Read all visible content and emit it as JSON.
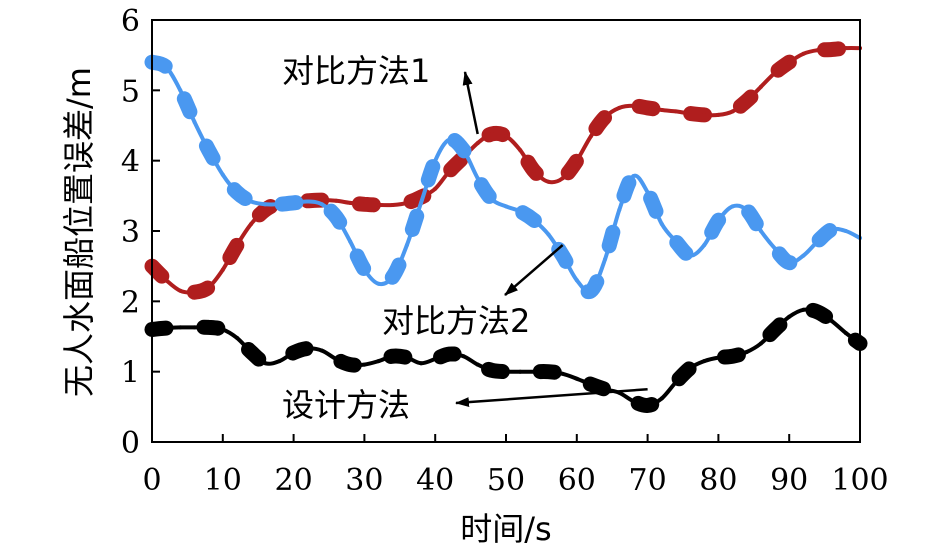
{
  "chart_data": {
    "type": "line",
    "title": "",
    "xlabel": "时间/s",
    "ylabel": "无人水面船位置误差/m",
    "xlim": [
      0,
      100
    ],
    "ylim": [
      0,
      6
    ],
    "xticks": [
      0,
      10,
      20,
      30,
      40,
      50,
      60,
      70,
      80,
      90,
      100
    ],
    "yticks": [
      0,
      1,
      2,
      3,
      4,
      5,
      6
    ],
    "grid": false,
    "legend": "none",
    "series": [
      {
        "name": "对比方法1",
        "color": "#B01E1E",
        "x": [
          0,
          2,
          4,
          6,
          8,
          10,
          12,
          14,
          16,
          18,
          20,
          22,
          24,
          26,
          28,
          30,
          32,
          34,
          36,
          38,
          40,
          42,
          44,
          46,
          48,
          50,
          52,
          54,
          56,
          58,
          60,
          62,
          64,
          66,
          68,
          70,
          72,
          74,
          76,
          78,
          80,
          82,
          84,
          86,
          88,
          90,
          92,
          94,
          96,
          98,
          100
        ],
        "values": [
          2.5,
          2.3,
          2.15,
          2.13,
          2.2,
          2.45,
          2.8,
          3.1,
          3.3,
          3.4,
          3.42,
          3.43,
          3.44,
          3.43,
          3.4,
          3.38,
          3.37,
          3.37,
          3.4,
          3.48,
          3.6,
          3.85,
          4.05,
          4.25,
          4.38,
          4.35,
          4.15,
          3.85,
          3.7,
          3.75,
          4.0,
          4.35,
          4.62,
          4.75,
          4.78,
          4.75,
          4.72,
          4.7,
          4.67,
          4.65,
          4.65,
          4.7,
          4.85,
          5.05,
          5.25,
          5.4,
          5.52,
          5.57,
          5.58,
          5.6,
          5.6
        ]
      },
      {
        "name": "对比方法2",
        "color": "#4A98F0",
        "x": [
          0,
          2,
          4,
          6,
          8,
          10,
          12,
          14,
          16,
          18,
          20,
          22,
          24,
          26,
          28,
          30,
          32,
          34,
          36,
          38,
          40,
          42,
          44,
          46,
          48,
          50,
          52,
          54,
          56,
          58,
          60,
          62,
          64,
          66,
          68,
          70,
          72,
          74,
          76,
          78,
          80,
          82,
          84,
          86,
          88,
          90,
          92,
          94,
          96,
          98,
          100
        ],
        "values": [
          5.4,
          5.33,
          5.0,
          4.55,
          4.15,
          3.8,
          3.55,
          3.42,
          3.38,
          3.38,
          3.4,
          3.42,
          3.38,
          3.2,
          2.85,
          2.45,
          2.25,
          2.35,
          2.8,
          3.4,
          4.0,
          4.3,
          4.15,
          3.75,
          3.45,
          3.35,
          3.28,
          3.15,
          2.95,
          2.65,
          2.3,
          2.15,
          2.6,
          3.3,
          3.78,
          3.55,
          3.1,
          2.85,
          2.65,
          2.8,
          3.15,
          3.35,
          3.3,
          3.0,
          2.75,
          2.55,
          2.65,
          2.85,
          3.02,
          3.0,
          2.9
        ]
      },
      {
        "name": "设计方法",
        "color": "#000000",
        "x": [
          0,
          2,
          4,
          6,
          8,
          10,
          12,
          14,
          16,
          18,
          20,
          22,
          24,
          26,
          28,
          30,
          32,
          34,
          36,
          38,
          40,
          42,
          44,
          46,
          48,
          50,
          52,
          54,
          56,
          58,
          60,
          62,
          64,
          66,
          68,
          70,
          72,
          74,
          76,
          78,
          80,
          82,
          84,
          86,
          88,
          90,
          92,
          94,
          96,
          98,
          100
        ],
        "values": [
          1.6,
          1.62,
          1.63,
          1.63,
          1.63,
          1.6,
          1.48,
          1.28,
          1.12,
          1.15,
          1.27,
          1.33,
          1.3,
          1.18,
          1.1,
          1.1,
          1.15,
          1.22,
          1.2,
          1.12,
          1.18,
          1.25,
          1.22,
          1.1,
          1.02,
          1.0,
          1.0,
          1.0,
          1.0,
          0.97,
          0.9,
          0.82,
          0.75,
          0.7,
          0.58,
          0.52,
          0.62,
          0.85,
          1.05,
          1.15,
          1.2,
          1.22,
          1.28,
          1.4,
          1.6,
          1.78,
          1.88,
          1.85,
          1.72,
          1.55,
          1.4
        ]
      }
    ],
    "annotations": [
      {
        "name": "anno-method1",
        "text": "对比方法1",
        "target": [
          46,
          4.38
        ]
      },
      {
        "name": "anno-method2",
        "text": "对比方法2",
        "target": [
          58,
          2.8
        ]
      },
      {
        "name": "anno-design",
        "text": "设计方法",
        "target": [
          70,
          0.75
        ]
      }
    ]
  }
}
